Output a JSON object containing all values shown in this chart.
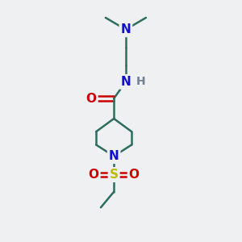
{
  "bg_color": "#eef0f2",
  "bond_color": "#2d6e5e",
  "N_color": "#1010cc",
  "O_color": "#cc0000",
  "S_color": "#bbbb00",
  "H_color": "#708090",
  "line_width": 1.8,
  "font_size_atom": 11,
  "fig_size": [
    3.0,
    3.0
  ],
  "dpi": 100,
  "xlim": [
    0,
    10
  ],
  "ylim": [
    0,
    10
  ]
}
